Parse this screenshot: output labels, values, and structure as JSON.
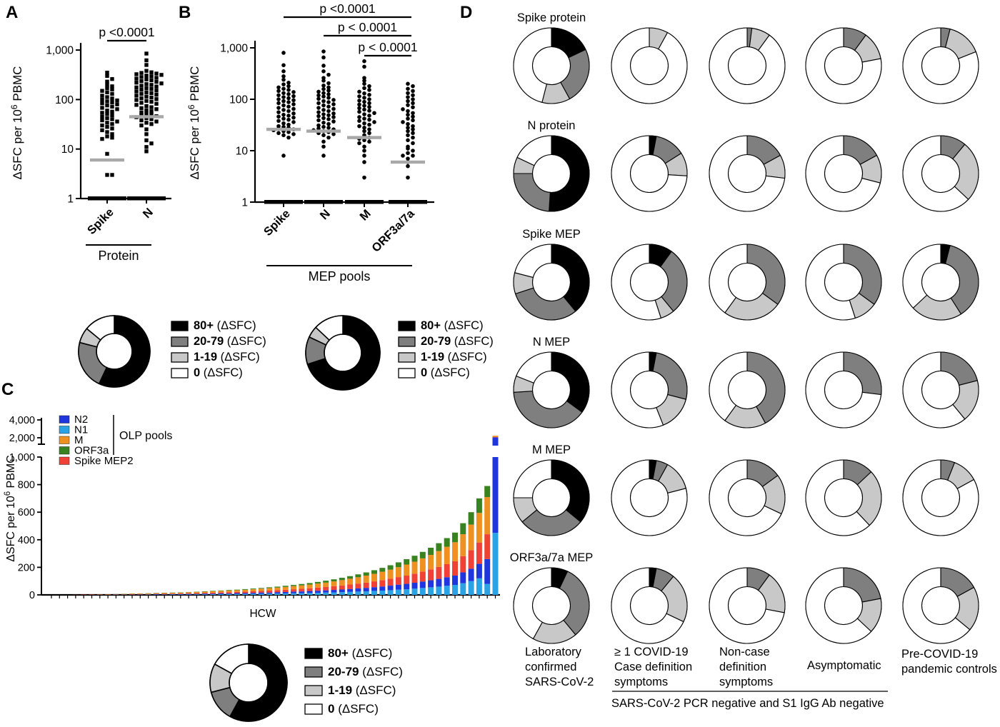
{
  "panel_labels": {
    "A": "A",
    "B": "B",
    "C": "C",
    "D": "D"
  },
  "donut_legend": [
    {
      "range": "80+",
      "suffix": " (ΔSFC)",
      "color": "#000000"
    },
    {
      "range": "20-79",
      "suffix": " (ΔSFC)",
      "color": "#7f7f7f"
    },
    {
      "range": "1-19",
      "suffix": " (ΔSFC)",
      "color": "#c8c8c8"
    },
    {
      "range": "0",
      "suffix": " (ΔSFC)",
      "color": "#ffffff"
    }
  ],
  "chart_data": [
    {
      "id": "A",
      "type": "scatter",
      "marker": "square",
      "yscale": "log",
      "ylim": [
        1,
        1000
      ],
      "ylabel": "ΔSFC per 10⁶ PBMC",
      "yticks": [
        "1",
        "10",
        "100",
        "1,000"
      ],
      "categories": [
        "Spike",
        "N"
      ],
      "group_label": "Protein",
      "medians": [
        6,
        45
      ],
      "baseline_at_1": true,
      "pvalues": [
        {
          "label": "p <0.0001",
          "from": 0,
          "to": 1
        }
      ],
      "series": [
        {
          "name": "Spike",
          "values": [
            350,
            300,
            260,
            230,
            200,
            185,
            170,
            160,
            150,
            140,
            130,
            120,
            112,
            105,
            100,
            96,
            92,
            88,
            84,
            80,
            76,
            72,
            68,
            64,
            60,
            57,
            54,
            51,
            48,
            45,
            42,
            40,
            38,
            36,
            34,
            32,
            30,
            28,
            26,
            24,
            22,
            20,
            18,
            17,
            16,
            8,
            3,
            3
          ]
        },
        {
          "name": "N",
          "values": [
            850,
            620,
            500,
            380,
            355,
            345,
            335,
            325,
            315,
            305,
            295,
            285,
            275,
            265,
            255,
            245,
            235,
            228,
            220,
            212,
            205,
            198,
            190,
            183,
            176,
            170,
            164,
            158,
            152,
            146,
            140,
            135,
            130,
            125,
            120,
            115,
            110,
            106,
            102,
            98,
            94,
            90,
            86,
            82,
            78,
            74,
            70,
            67,
            64,
            61,
            58,
            55,
            52,
            50,
            48,
            46,
            44,
            42,
            40,
            38,
            36,
            34,
            32,
            30,
            25,
            20,
            15,
            13,
            11,
            9
          ]
        }
      ]
    },
    {
      "id": "B",
      "type": "scatter",
      "marker": "circle",
      "yscale": "log",
      "ylim": [
        1,
        1000
      ],
      "ylabel": "ΔSFC per 10⁶ PBMC",
      "yticks": [
        "1",
        "10",
        "100",
        "1,000"
      ],
      "categories": [
        "Spike",
        "N",
        "M",
        "ORF3a/7a"
      ],
      "group_label": "MEP pools",
      "medians": [
        26,
        24,
        18,
        6
      ],
      "baseline_at_1": true,
      "pvalues": [
        {
          "label": "p <0.0001",
          "from": 0,
          "to": 3
        },
        {
          "label": "p < 0.0001",
          "from": 1,
          "to": 3
        },
        {
          "label": "p < 0.0001",
          "from": 2,
          "to": 3
        }
      ],
      "series": [
        {
          "name": "Spike",
          "values": [
            800,
            460,
            350,
            280,
            240,
            210,
            195,
            180,
            170,
            160,
            152,
            145,
            138,
            132,
            126,
            120,
            115,
            110,
            105,
            100,
            96,
            92,
            88,
            84,
            80,
            76,
            72,
            68,
            65,
            62,
            59,
            56,
            53,
            50,
            48,
            46,
            44,
            42,
            40,
            38,
            36,
            34,
            32,
            30,
            29,
            28,
            27,
            26,
            25,
            24,
            23,
            22,
            21,
            20,
            18,
            8
          ]
        },
        {
          "name": "N",
          "values": [
            850,
            650,
            450,
            350,
            300,
            260,
            230,
            205,
            185,
            170,
            158,
            148,
            140,
            132,
            125,
            119,
            113,
            107,
            102,
            97,
            92,
            88,
            84,
            80,
            76,
            72,
            68,
            65,
            62,
            59,
            56,
            53,
            51,
            49,
            47,
            45,
            43,
            41,
            39,
            37,
            35,
            33,
            31,
            29,
            28,
            27,
            26,
            25,
            24,
            23,
            22,
            21,
            20,
            18,
            15,
            12,
            8
          ]
        },
        {
          "name": "M",
          "values": [
            550,
            430,
            260,
            230,
            200,
            180,
            165,
            152,
            140,
            130,
            122,
            114,
            107,
            100,
            94,
            89,
            84,
            79,
            75,
            71,
            67,
            63,
            60,
            57,
            54,
            51,
            48,
            45,
            42,
            40,
            38,
            36,
            34,
            32,
            30,
            28,
            26,
            24,
            22,
            20,
            18,
            17,
            16,
            15,
            14,
            12,
            10,
            8,
            6,
            3
          ]
        },
        {
          "name": "ORF3a/7a",
          "values": [
            200,
            180,
            160,
            145,
            132,
            120,
            110,
            100,
            92,
            84,
            77,
            70,
            64,
            59,
            54,
            50,
            46,
            42,
            39,
            36,
            33,
            30,
            28,
            26,
            24,
            22,
            20,
            18,
            16,
            14,
            12,
            11,
            10,
            9,
            8,
            8,
            7,
            6,
            5,
            3
          ]
        }
      ]
    },
    {
      "id": "C",
      "type": "stacked-bar",
      "xlabel": "HCW",
      "ylabel": "ΔSFC per 10⁶ PBMC",
      "yticks": [
        0,
        200,
        400,
        600,
        800,
        1000
      ],
      "upper_yticks": [
        2000,
        4000
      ],
      "axis_break": true,
      "legend": [
        {
          "name": "N2",
          "color": "#1f35dd"
        },
        {
          "name": "N1",
          "color": "#29a3e3"
        },
        {
          "name": "M",
          "color": "#ef9121"
        },
        {
          "name": "ORF3a",
          "color": "#38831f"
        },
        {
          "name": "Spike MEP2",
          "color": "#ef4136"
        }
      ],
      "legend_bracket_label": "OLP pools",
      "legend_bracket_span": 4,
      "stack_order": [
        "N1",
        "N2",
        "Spike MEP2",
        "M",
        "ORF3a"
      ],
      "stack_colors": [
        "#29a3e3",
        "#1f35dd",
        "#ef4136",
        "#ef9121",
        "#38831f"
      ],
      "bars": [
        [
          0,
          0,
          0,
          0,
          0
        ],
        [
          0,
          0,
          0,
          0,
          0
        ],
        [
          0,
          0,
          0,
          0,
          0
        ],
        [
          0,
          0,
          1,
          0,
          0
        ],
        [
          0,
          0,
          2,
          0,
          0
        ],
        [
          0,
          0,
          2,
          1,
          0
        ],
        [
          0,
          1,
          1,
          2,
          0
        ],
        [
          0,
          0,
          2,
          2,
          1
        ],
        [
          0,
          2,
          1,
          2,
          1
        ],
        [
          1,
          1,
          2,
          3,
          1
        ],
        [
          0,
          2,
          3,
          4,
          1
        ],
        [
          1,
          2,
          3,
          4,
          1
        ],
        [
          2,
          1,
          3,
          4,
          2
        ],
        [
          2,
          3,
          3,
          4,
          2
        ],
        [
          2,
          2,
          4,
          5,
          2
        ],
        [
          3,
          2,
          4,
          6,
          2
        ],
        [
          3,
          3,
          5,
          6,
          2
        ],
        [
          3,
          4,
          5,
          7,
          2
        ],
        [
          4,
          3,
          6,
          8,
          2
        ],
        [
          4,
          5,
          6,
          8,
          3
        ],
        [
          5,
          4,
          7,
          10,
          3
        ],
        [
          5,
          6,
          8,
          10,
          3
        ],
        [
          6,
          5,
          9,
          11,
          4
        ],
        [
          6,
          7,
          9,
          12,
          4
        ],
        [
          7,
          6,
          11,
          13,
          5
        ],
        [
          8,
          7,
          11,
          15,
          5
        ],
        [
          8,
          9,
          12,
          16,
          5
        ],
        [
          9,
          8,
          14,
          18,
          6
        ],
        [
          10,
          10,
          14,
          19,
          7
        ],
        [
          11,
          10,
          16,
          21,
          8
        ],
        [
          12,
          12,
          17,
          23,
          8
        ],
        [
          13,
          12,
          19,
          25,
          10
        ],
        [
          14,
          14,
          20,
          27,
          11
        ],
        [
          15,
          15,
          23,
          29,
          12
        ],
        [
          17,
          16,
          24,
          32,
          14
        ],
        [
          18,
          18,
          27,
          35,
          15
        ],
        [
          20,
          19,
          29,
          39,
          17
        ],
        [
          22,
          21,
          32,
          42,
          19
        ],
        [
          24,
          23,
          35,
          46,
          21
        ],
        [
          26,
          25,
          38,
          51,
          23
        ],
        [
          29,
          27,
          42,
          55,
          26
        ],
        [
          31,
          30,
          46,
          61,
          28
        ],
        [
          34,
          33,
          50,
          66,
          32
        ],
        [
          38,
          36,
          55,
          72,
          35
        ],
        [
          41,
          39,
          60,
          80,
          39
        ],
        [
          45,
          43,
          66,
          87,
          43
        ],
        [
          50,
          47,
          72,
          96,
          47
        ],
        [
          55,
          51,
          79,
          105,
          52
        ],
        [
          60,
          56,
          87,
          115,
          57
        ],
        [
          66,
          62,
          95,
          126,
          63
        ],
        [
          72,
          68,
          104,
          138,
          70
        ],
        [
          85,
          78,
          118,
          159,
          80
        ],
        [
          100,
          90,
          135,
          185,
          90
        ],
        [
          120,
          105,
          155,
          215,
          105
        ],
        [
          80,
          180,
          180,
          270,
          80
        ],
        [
          450,
          1600,
          30,
          150,
          0
        ]
      ]
    },
    {
      "id": "donutA",
      "type": "donut",
      "values": [
        57,
        22,
        7,
        14
      ],
      "labels": [
        "80+",
        "20-79",
        "1-19",
        "0"
      ]
    },
    {
      "id": "donutB",
      "type": "donut",
      "values": [
        70,
        12,
        5,
        13
      ],
      "labels": [
        "80+",
        "20-79",
        "1-19",
        "0"
      ]
    },
    {
      "id": "donutC",
      "type": "donut",
      "values": [
        58,
        13,
        12,
        17
      ],
      "labels": [
        "80+",
        "20-79",
        "1-19",
        "0"
      ]
    },
    {
      "id": "D",
      "type": "donut-grid",
      "slice_colors": [
        "#000000",
        "#7f7f7f",
        "#c8c8c8",
        "#ffffff"
      ],
      "slice_labels": [
        "80+ (ΔSFC)",
        "20-79 (ΔSFC)",
        "1-19 (ΔSFC)",
        "0 (ΔSFC)"
      ],
      "rows": [
        {
          "label": "Spike protein",
          "values": [
            [
              18,
              24,
              12,
              46
            ],
            [
              0,
              0,
              8,
              92
            ],
            [
              0,
              2,
              8,
              90
            ],
            [
              0,
              10,
              12,
              78
            ],
            [
              0,
              4,
              15,
              81
            ]
          ]
        },
        {
          "label": "N protein",
          "values": [
            [
              51,
              24,
              7,
              18
            ],
            [
              3,
              13,
              10,
              74
            ],
            [
              0,
              17,
              10,
              73
            ],
            [
              0,
              17,
              12,
              71
            ],
            [
              0,
              11,
              26,
              63
            ]
          ]
        },
        {
          "label": "Spike MEP",
          "values": [
            [
              39,
              31,
              9,
              21
            ],
            [
              10,
              29,
              6,
              55
            ],
            [
              0,
              35,
              25,
              40
            ],
            [
              0,
              35,
              10,
              55
            ],
            [
              4,
              37,
              22,
              37
            ]
          ]
        },
        {
          "label": "N MEP",
          "values": [
            [
              35,
              39,
              7,
              19
            ],
            [
              3,
              26,
              15,
              56
            ],
            [
              0,
              42,
              18,
              40
            ],
            [
              0,
              27,
              0,
              73
            ],
            [
              0,
              21,
              18,
              61
            ]
          ]
        },
        {
          "label": "M MEP",
          "values": [
            [
              36,
              28,
              11,
              25
            ],
            [
              3,
              5,
              13,
              79
            ],
            [
              0,
              15,
              17,
              68
            ],
            [
              0,
              13,
              25,
              62
            ],
            [
              0,
              6,
              11,
              83
            ]
          ]
        },
        {
          "label": "ORF3a/7a MEP",
          "values": [
            [
              7,
              32,
              19,
              42
            ],
            [
              3,
              8,
              21,
              68
            ],
            [
              0,
              10,
              18,
              72
            ],
            [
              0,
              22,
              15,
              63
            ],
            [
              0,
              17,
              19,
              64
            ]
          ]
        }
      ],
      "columns": [
        "Laboratory\nconfirmed\nSARS-CoV-2",
        "≥ 1 COVID-19\nCase definition\nsymptoms",
        "Non-case\ndefinition\nsymptoms",
        "Asymptomatic",
        "Pre-COVID-19\npandemic controls"
      ],
      "footer": "SARS-CoV-2 PCR negative and S1 IgG Ab negative"
    }
  ]
}
